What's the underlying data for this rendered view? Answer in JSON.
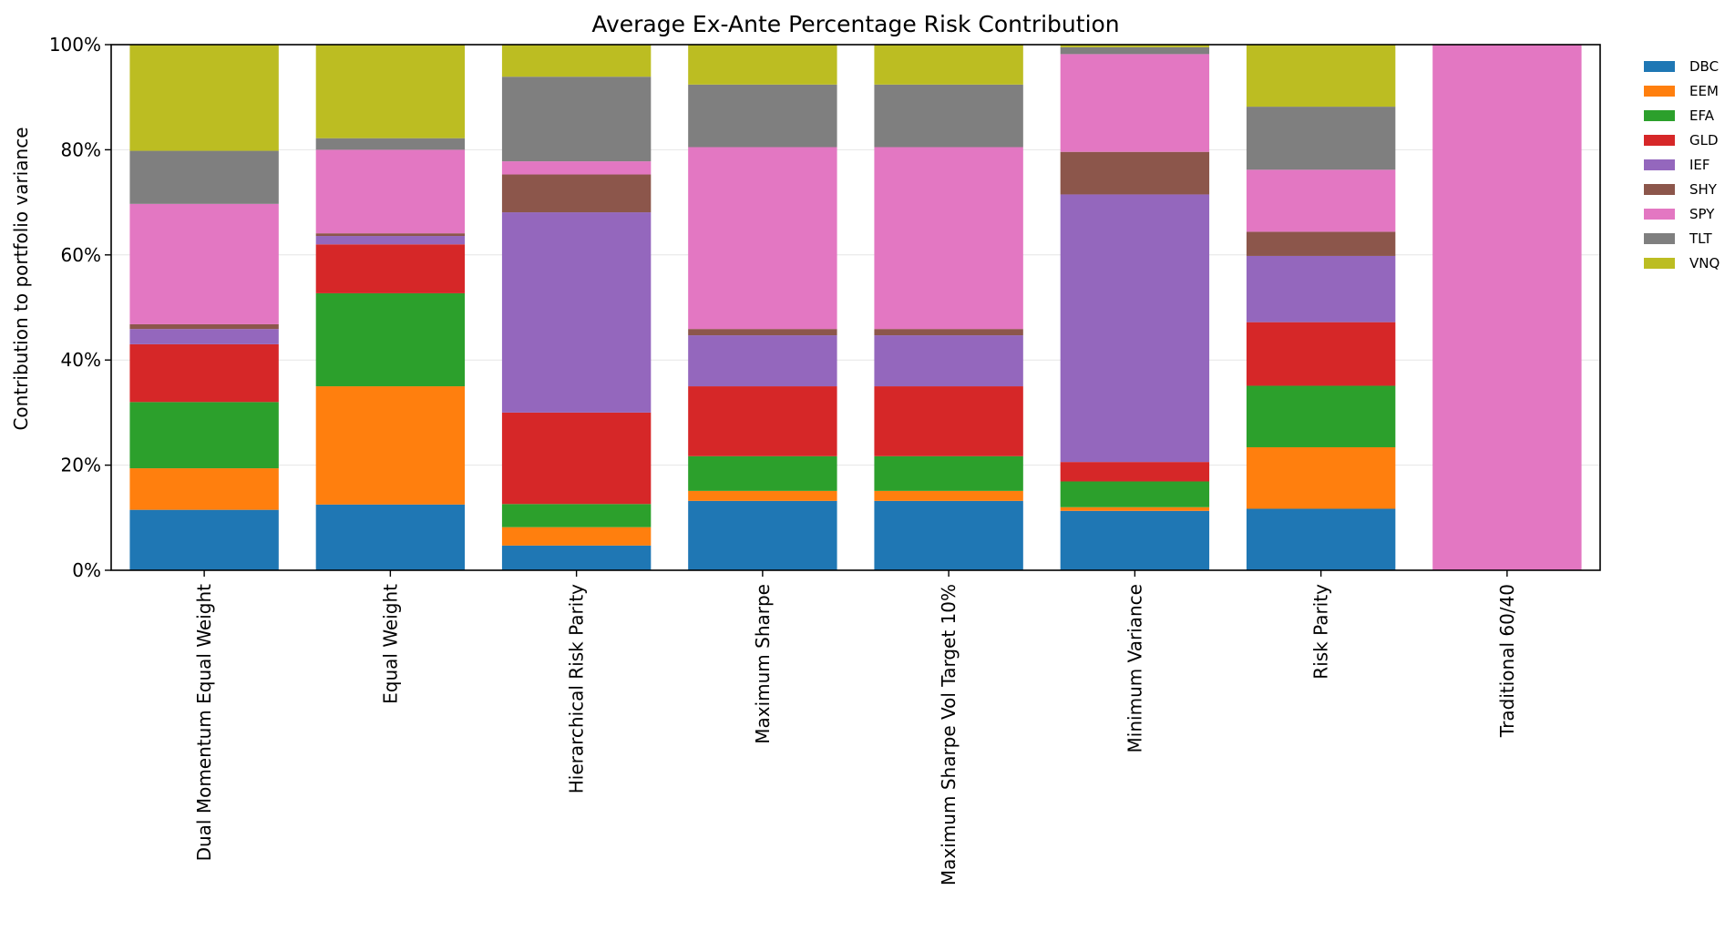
{
  "chart_data": {
    "type": "bar",
    "stacked": true,
    "title": "Average Ex-Ante Percentage Risk Contribution",
    "xlabel": "",
    "ylabel": "Contribution to portfolio variance",
    "ylim": [
      0,
      100
    ],
    "y_ticks": [
      0,
      20,
      40,
      60,
      80,
      100
    ],
    "y_tick_labels": [
      "0%",
      "20%",
      "40%",
      "60%",
      "80%",
      "100%"
    ],
    "grid": "horizontal",
    "legend_position": "outside-right-top",
    "categories": [
      "Dual Momentum Equal Weight",
      "Equal Weight",
      "Hierarchical Risk Parity",
      "Maximum Sharpe",
      "Maximum Sharpe Vol Target 10%",
      "Minimum Variance",
      "Risk Parity",
      "Traditional 60/40"
    ],
    "series": [
      {
        "name": "DBC",
        "color": "#1f77b4",
        "values": [
          11.5,
          12.5,
          4.7,
          13.2,
          13.2,
          11.3,
          11.7,
          0
        ]
      },
      {
        "name": "EEM",
        "color": "#ff7f0e",
        "values": [
          7.9,
          22.5,
          3.5,
          1.9,
          1.9,
          0.7,
          11.7,
          0
        ]
      },
      {
        "name": "EFA",
        "color": "#2ca02c",
        "values": [
          12.6,
          17.7,
          4.4,
          6.6,
          6.6,
          4.9,
          11.7,
          0
        ]
      },
      {
        "name": "GLD",
        "color": "#d62728",
        "values": [
          11.0,
          9.3,
          17.4,
          13.3,
          13.3,
          3.7,
          12.1,
          0
        ]
      },
      {
        "name": "IEF",
        "color": "#9467bd",
        "values": [
          2.9,
          1.6,
          38.1,
          9.7,
          9.7,
          50.9,
          12.6,
          0
        ]
      },
      {
        "name": "SHY",
        "color": "#8c564b",
        "values": [
          0.9,
          0.5,
          7.2,
          1.2,
          1.2,
          8.1,
          4.6,
          0
        ]
      },
      {
        "name": "SPY",
        "color": "#e377c2",
        "values": [
          22.9,
          15.9,
          2.5,
          34.6,
          34.6,
          18.6,
          11.8,
          100
        ]
      },
      {
        "name": "TLT",
        "color": "#7f7f7f",
        "values": [
          10.1,
          2.2,
          16.1,
          11.9,
          11.9,
          1.3,
          12.0,
          0
        ]
      },
      {
        "name": "VNQ",
        "color": "#bcbd22",
        "values": [
          20.2,
          17.8,
          6.1,
          7.6,
          7.6,
          0.5,
          11.8,
          0
        ]
      }
    ]
  }
}
